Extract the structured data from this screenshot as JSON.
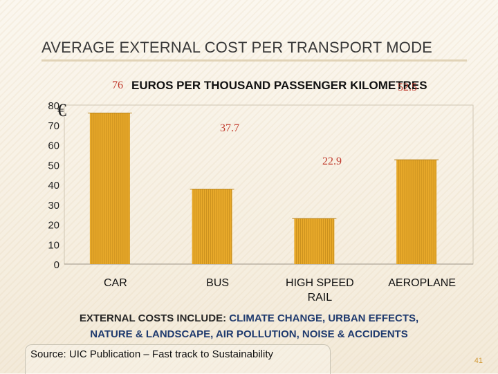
{
  "slide": {
    "title": "AVERAGE EXTERNAL COST PER TRANSPORT MODE",
    "caption_lead": "EXTERNAL COSTS INCLUDE",
    "caption_colon": ":",
    "caption_items": "CLIMATE CHANGE, URBAN EFFECTS,",
    "caption_line2": "NATURE & LANDSCAPE, AIR POLLUTION, NOISE & ACCIDENTS",
    "source": "Source: UIC Publication – Fast track to Sustainability",
    "page_number": "41",
    "accent_color": "#1f3a6e"
  },
  "chart_data": {
    "type": "bar",
    "title": "EUROS PER THOUSAND PASSENGER KILOMETRES",
    "unit_symbol": "€",
    "categories": [
      "CAR",
      "BUS",
      "HIGH SPEED\nRAIL",
      "AEROPLANE"
    ],
    "values": [
      76,
      37.7,
      22.9,
      52.5
    ],
    "data_labels": [
      "76",
      "37.7",
      "22.9",
      "52.5"
    ],
    "ylim": [
      0,
      80
    ],
    "yticks": [
      0,
      10,
      20,
      30,
      40,
      50,
      60,
      70,
      80
    ],
    "bar_color": "#e8a92a",
    "label_color": "#c0392b",
    "grid": false,
    "legend": "none"
  }
}
